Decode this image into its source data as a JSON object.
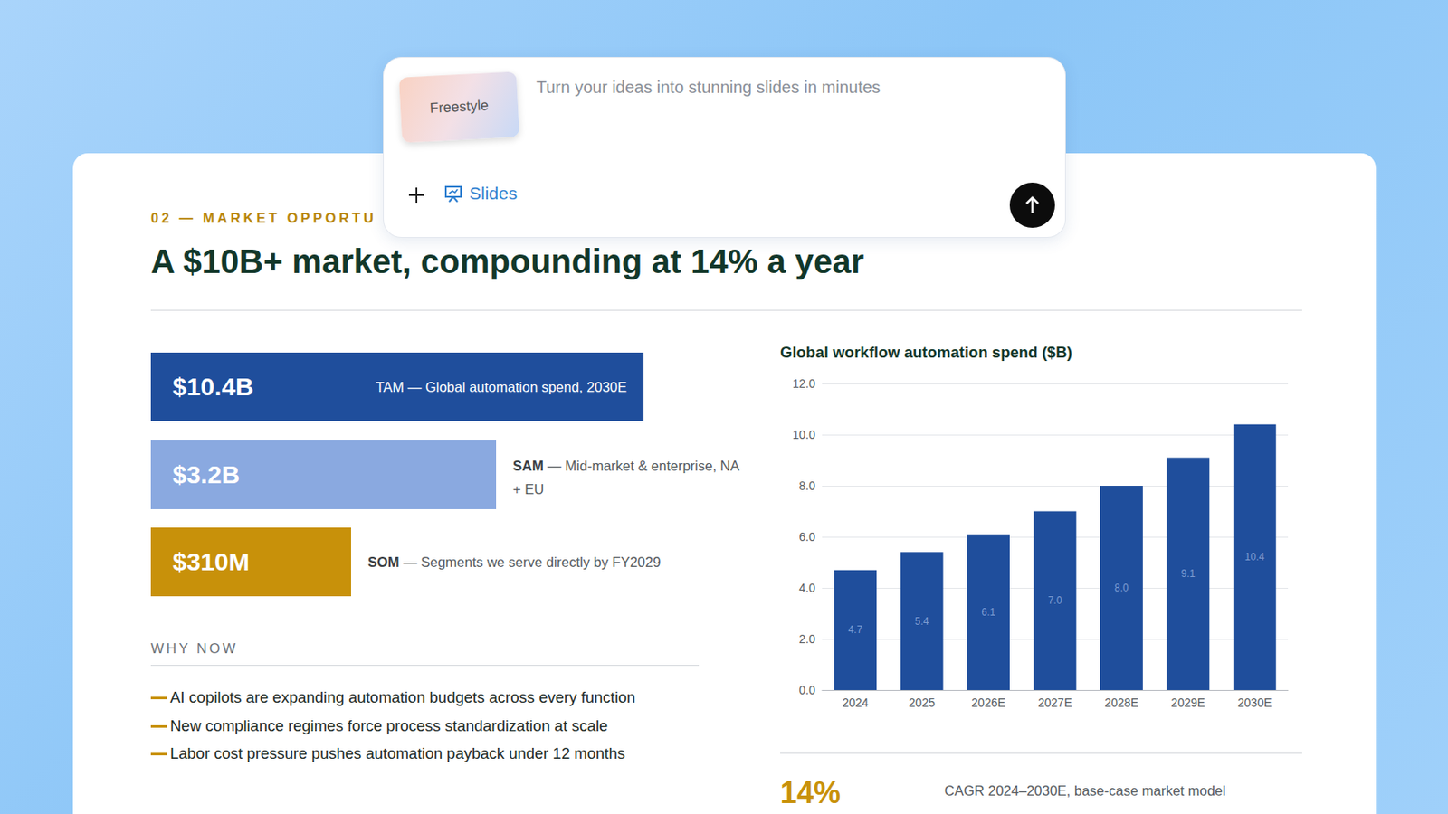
{
  "prompt_box": {
    "mode_chip": "Freestyle",
    "placeholder": "Turn your ideas into stunning slides in minutes",
    "tool": "Slides"
  },
  "slide": {
    "section": "02 — MARKET OPPORTU",
    "title": "A $10B+ market, compounding at 14% a year",
    "market_sizes": [
      {
        "value": "$10.4B",
        "term": "TAM",
        "description": "— Global automation spend, 2030E",
        "color": "#1f4e9c"
      },
      {
        "value": "$3.2B",
        "term": "SAM",
        "description": "— Mid-market & enterprise, NA + EU",
        "color": "#8aa9e0"
      },
      {
        "value": "$310M",
        "term": "SOM",
        "description": "— Segments we serve directly by FY2029",
        "color": "#c8910a"
      }
    ],
    "why_now": {
      "heading": "WHY NOW",
      "items": [
        "AI copilots are expanding automation budgets across every function",
        "New compliance regimes force process standardization at scale",
        "Labor cost pressure pushes automation payback under 12 months"
      ]
    },
    "cagr": {
      "value": "14%",
      "description": "CAGR 2024–2030E, base-case market model"
    }
  },
  "chart_data": {
    "type": "bar",
    "title": "Global workflow automation spend ($B)",
    "categories": [
      "2024",
      "2025",
      "2026E",
      "2027E",
      "2028E",
      "2029E",
      "2030E"
    ],
    "values": [
      4.7,
      5.4,
      6.1,
      7.0,
      8.0,
      9.1,
      10.4
    ],
    "value_labels": [
      "4.7",
      "5.4",
      "6.1",
      "7.0",
      "8.0",
      "9.1",
      "10.4"
    ],
    "color": "#1f4e9c",
    "ylim": [
      0,
      12
    ],
    "yticks": [
      {
        "value": 0,
        "label": "0.0"
      },
      {
        "value": 2,
        "label": "2.0"
      },
      {
        "value": 4,
        "label": "4.0"
      },
      {
        "value": 6,
        "label": "6.0"
      },
      {
        "value": 8,
        "label": "8.0"
      },
      {
        "value": 10,
        "label": "10.0"
      },
      {
        "value": 12,
        "label": "12.0"
      }
    ],
    "grid": true,
    "data_labels": true
  }
}
